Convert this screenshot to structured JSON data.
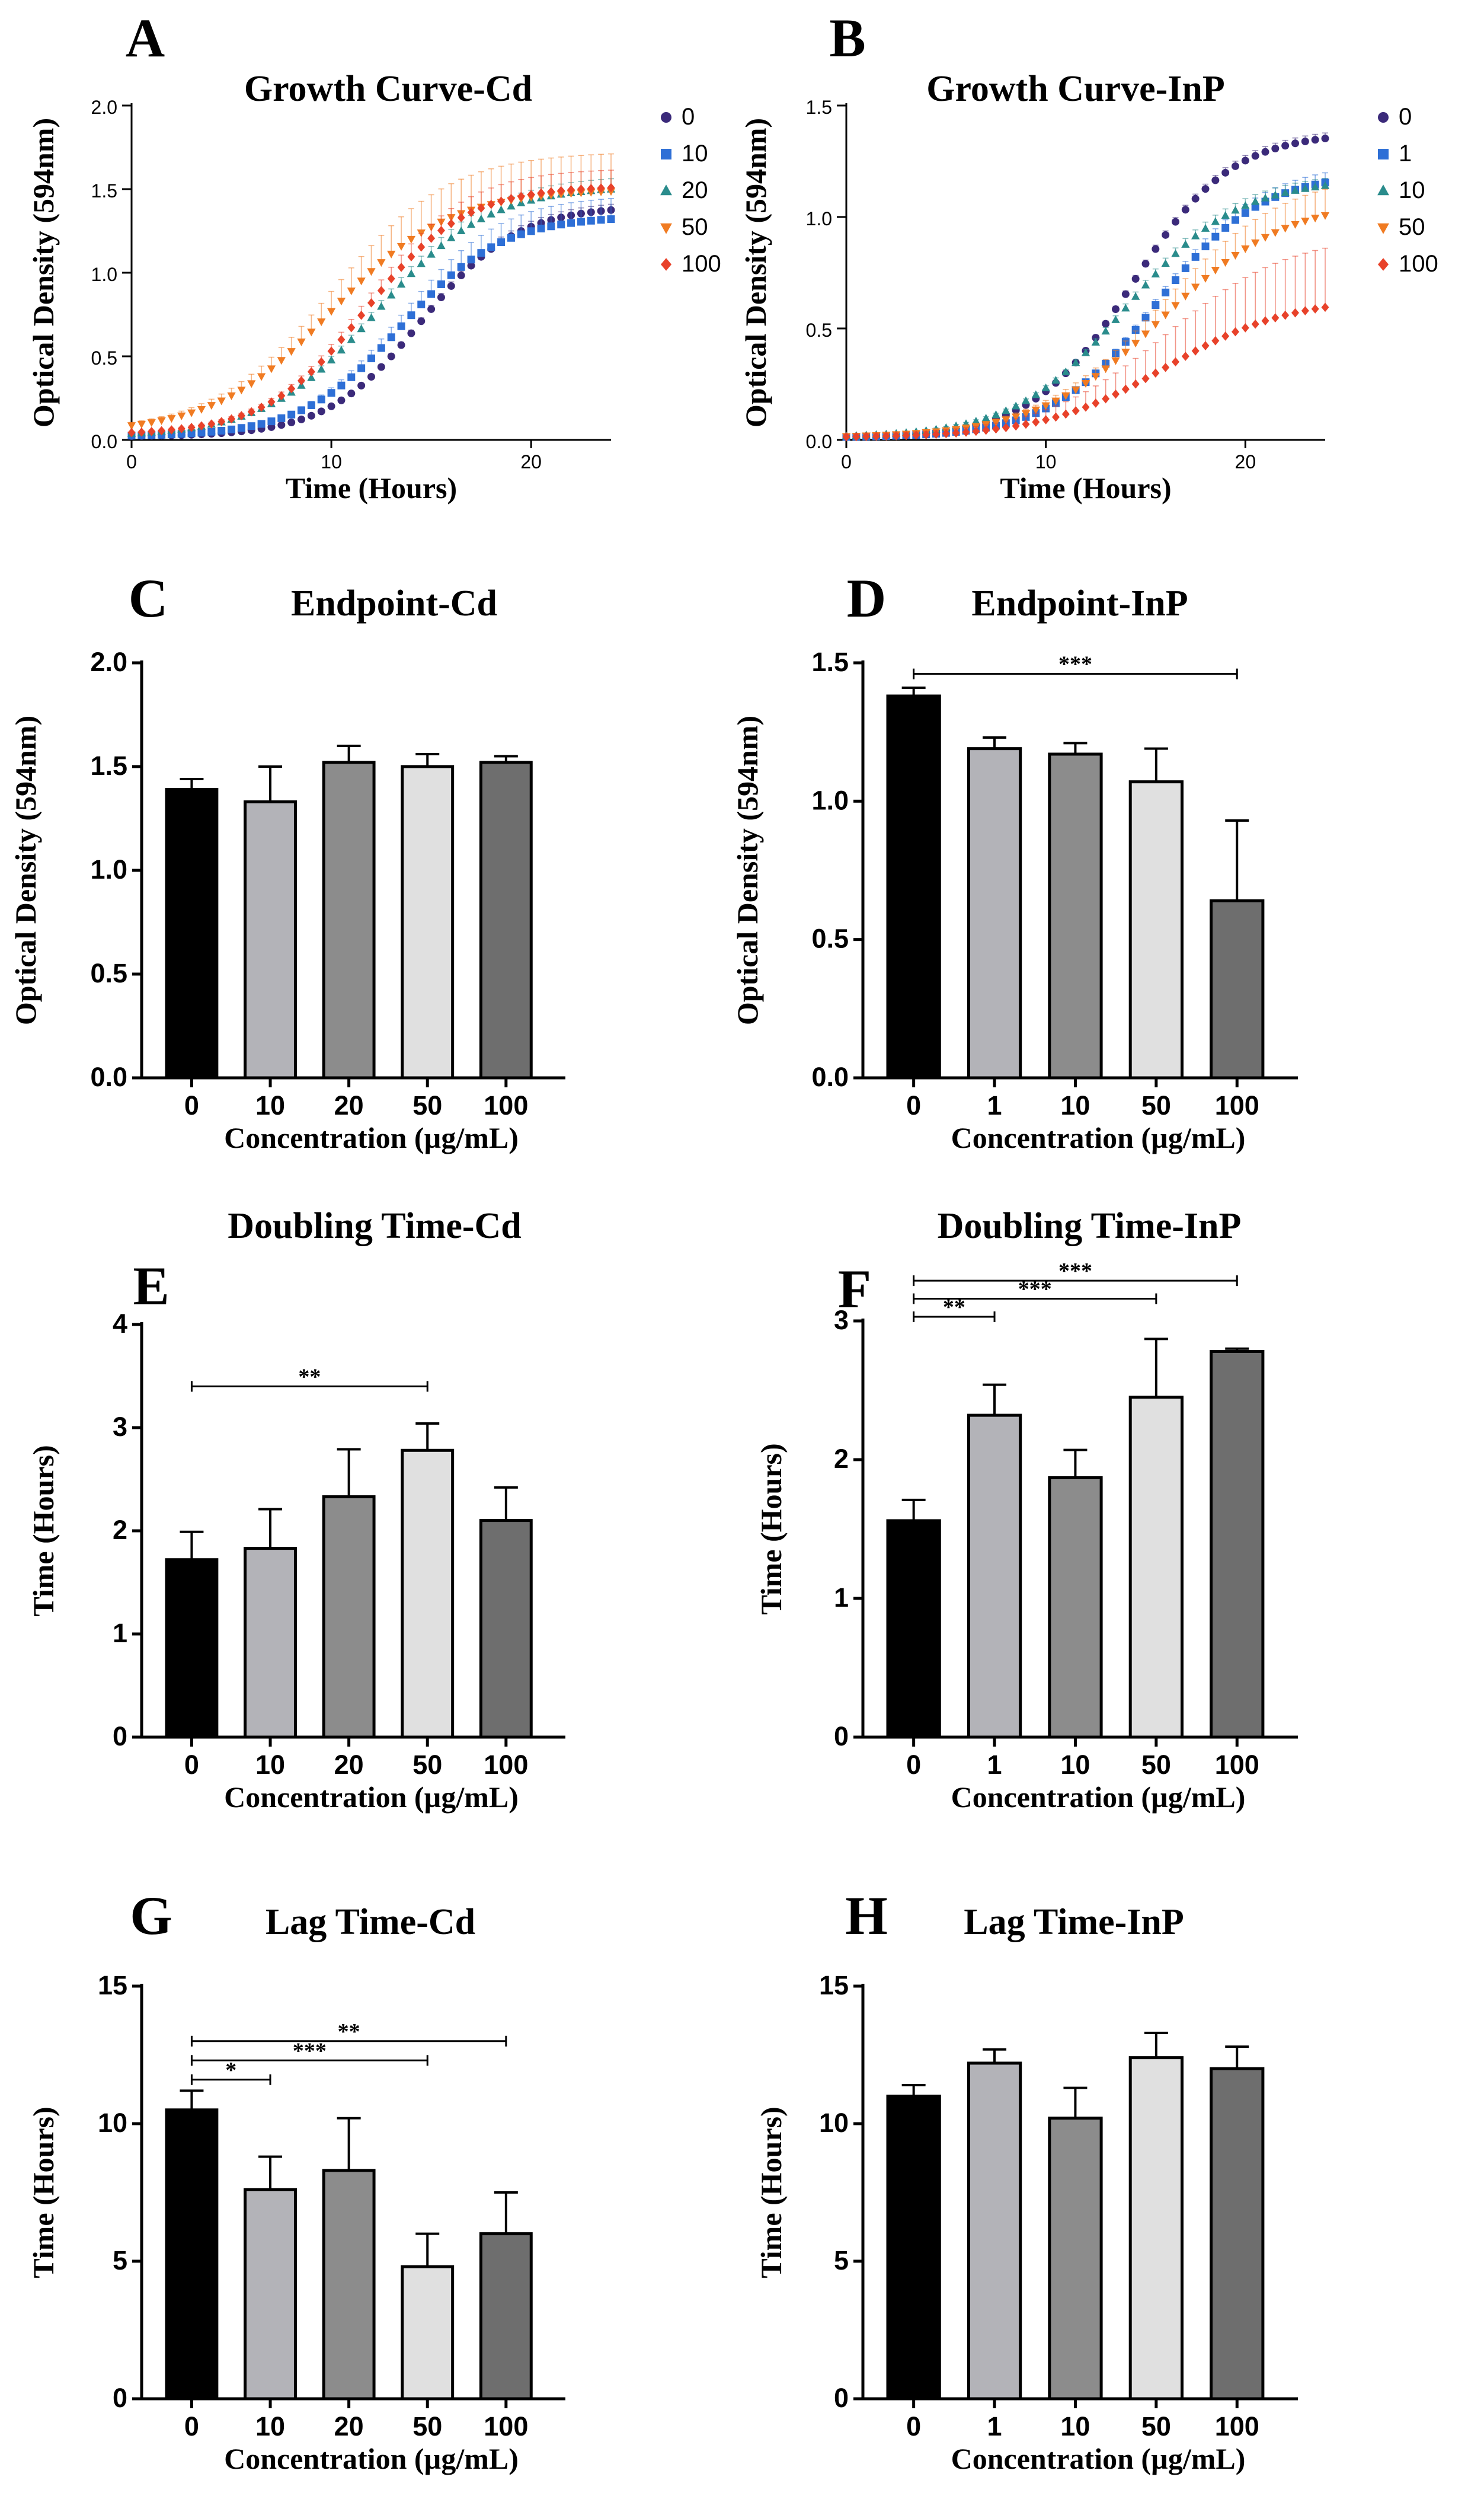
{
  "chart_data": [
    {
      "id": "A",
      "letter": "A",
      "type": "scatter",
      "title": "Growth Curve-Cd",
      "xlabel": "Time (Hours)",
      "ylabel": "Optical Density (594nm)",
      "xlim": [
        0,
        24
      ],
      "ylim": [
        0,
        2.0
      ],
      "xticks": [
        0,
        10,
        20
      ],
      "yticks": [
        "0.0",
        "0.5",
        "1.0",
        "1.5",
        "2.0"
      ],
      "series": [
        {
          "name": "0",
          "color": "#3b2a7a",
          "marker": "circle",
          "lag": 11.0,
          "max": 1.4,
          "k": 0.42,
          "base": 0.02,
          "err": 0.03
        },
        {
          "name": "10",
          "color": "#2e6fd6",
          "marker": "square",
          "lag": 10.0,
          "max": 1.34,
          "k": 0.4,
          "base": 0.02,
          "err": 0.12
        },
        {
          "name": "20",
          "color": "#2a8c8c",
          "marker": "triangle",
          "lag": 8.8,
          "max": 1.52,
          "k": 0.36,
          "base": 0.02,
          "err": 0.06
        },
        {
          "name": "50",
          "color": "#f07b22",
          "marker": "triangle-down",
          "lag": 6.5,
          "max": 1.5,
          "k": 0.34,
          "base": 0.04,
          "err": 0.22
        },
        {
          "name": "100",
          "color": "#e8422a",
          "marker": "diamond",
          "lag": 8.2,
          "max": 1.52,
          "k": 0.4,
          "base": 0.03,
          "err": 0.1
        }
      ]
    },
    {
      "id": "B",
      "letter": "B",
      "type": "scatter",
      "title": "Growth Curve-InP",
      "xlabel": "Time (Hours)",
      "ylabel": "Optical Density (594nm)",
      "xlim": [
        0,
        24
      ],
      "ylim": [
        0,
        1.5
      ],
      "xticks": [
        0,
        10,
        20
      ],
      "yticks": [
        "0.0",
        "0.5",
        "1.0",
        "1.5"
      ],
      "series": [
        {
          "name": "0",
          "color": "#3b2a7a",
          "marker": "circle",
          "lag": 10.8,
          "max": 1.38,
          "k": 0.4,
          "base": 0.01,
          "err": 0.02
        },
        {
          "name": "1",
          "color": "#2e6fd6",
          "marker": "square",
          "lag": 12.0,
          "max": 1.2,
          "k": 0.38,
          "base": 0.01,
          "err": 0.04
        },
        {
          "name": "10",
          "color": "#2a8c8c",
          "marker": "triangle",
          "lag": 10.5,
          "max": 1.17,
          "k": 0.36,
          "base": 0.01,
          "err": 0.03
        },
        {
          "name": "50",
          "color": "#f07b22",
          "marker": "triangle-down",
          "lag": 12.3,
          "max": 1.08,
          "k": 0.32,
          "base": 0.01,
          "err": 0.12
        },
        {
          "name": "100",
          "color": "#e8422a",
          "marker": "diamond",
          "lag": 12.5,
          "max": 0.64,
          "k": 0.32,
          "base": 0.01,
          "err": 0.28
        }
      ]
    },
    {
      "id": "C",
      "letter": "C",
      "type": "bar",
      "title": "Endpoint-Cd",
      "xlabel": "Concentration (µg/mL)",
      "ylabel": "Optical Density (594nm)",
      "ylim": [
        0,
        2.0
      ],
      "yticks": [
        "0.0",
        "0.5",
        "1.0",
        "1.5",
        "2.0"
      ],
      "categories": [
        "0",
        "10",
        "20",
        "50",
        "100"
      ],
      "values": [
        1.39,
        1.33,
        1.52,
        1.5,
        1.52
      ],
      "errors": [
        0.05,
        0.17,
        0.08,
        0.06,
        0.03
      ],
      "significance": []
    },
    {
      "id": "D",
      "letter": "D",
      "type": "bar",
      "title": "Endpoint-InP",
      "xlabel": "Concentration (µg/mL)",
      "ylabel": "Optical Density (594nm)",
      "ylim": [
        0,
        1.5
      ],
      "yticks": [
        "0.0",
        "0.5",
        "1.0",
        "1.5"
      ],
      "categories": [
        "0",
        "1",
        "10",
        "50",
        "100"
      ],
      "values": [
        1.38,
        1.19,
        1.17,
        1.07,
        0.64
      ],
      "errors": [
        0.03,
        0.04,
        0.04,
        0.12,
        0.29
      ],
      "significance": [
        {
          "from": 0,
          "to": 4,
          "label": "***",
          "level": 1.46
        }
      ]
    },
    {
      "id": "E",
      "letter": "E",
      "type": "bar",
      "title": "Doubling Time-Cd",
      "xlabel": "Concentration (µg/mL)",
      "ylabel": "Time (Hours)",
      "ylim": [
        0,
        4
      ],
      "yticks": [
        "0",
        "1",
        "2",
        "3",
        "4"
      ],
      "categories": [
        "0",
        "10",
        "20",
        "50",
        "100"
      ],
      "values": [
        1.72,
        1.83,
        2.33,
        2.78,
        2.1
      ],
      "errors": [
        0.27,
        0.38,
        0.46,
        0.26,
        0.32
      ],
      "significance": [
        {
          "from": 0,
          "to": 3,
          "label": "**",
          "level": 3.4
        }
      ]
    },
    {
      "id": "F",
      "letter": "F",
      "type": "bar",
      "title": "Doubling Time-InP",
      "xlabel": "Concentration (µg/mL)",
      "ylabel": "Time (Hours)",
      "ylim": [
        0,
        3
      ],
      "yticks": [
        "0",
        "1",
        "2",
        "3"
      ],
      "categories": [
        "0",
        "1",
        "10",
        "50",
        "100"
      ],
      "values": [
        1.56,
        2.32,
        1.87,
        2.45,
        2.78
      ],
      "errors": [
        0.15,
        0.22,
        0.2,
        0.42,
        0.02
      ],
      "significance": [
        {
          "from": 0,
          "to": 1,
          "label": "**",
          "level": 3.03
        },
        {
          "from": 0,
          "to": 3,
          "label": "***",
          "level": 3.16
        },
        {
          "from": 0,
          "to": 4,
          "label": "***",
          "level": 3.29
        }
      ]
    },
    {
      "id": "G",
      "letter": "G",
      "type": "bar",
      "title": "Lag Time-Cd",
      "xlabel": "Concentration (µg/mL)",
      "ylabel": "Time (Hours)",
      "ylim": [
        0,
        15
      ],
      "yticks": [
        "0",
        "5",
        "10",
        "15"
      ],
      "categories": [
        "0",
        "10",
        "20",
        "50",
        "100"
      ],
      "values": [
        10.5,
        7.6,
        8.3,
        4.8,
        6.0
      ],
      "errors": [
        0.7,
        1.2,
        1.9,
        1.2,
        1.5
      ],
      "significance": [
        {
          "from": 0,
          "to": 1,
          "label": "*",
          "level": 11.6
        },
        {
          "from": 0,
          "to": 3,
          "label": "***",
          "level": 12.3
        },
        {
          "from": 0,
          "to": 4,
          "label": "**",
          "level": 13.0
        }
      ]
    },
    {
      "id": "H",
      "letter": "H",
      "type": "bar",
      "title": "Lag Time-InP",
      "xlabel": "Concentration (µg/mL)",
      "ylabel": "Time (Hours)",
      "ylim": [
        0,
        15
      ],
      "yticks": [
        "0",
        "5",
        "10",
        "15"
      ],
      "categories": [
        "0",
        "1",
        "10",
        "50",
        "100"
      ],
      "values": [
        11.0,
        12.2,
        10.2,
        12.4,
        12.0
      ],
      "errors": [
        0.4,
        0.5,
        1.1,
        0.9,
        0.8
      ],
      "significance": []
    }
  ],
  "colors": {
    "bar_fills": [
      "#000000",
      "#b3b3b8",
      "#8c8c8c",
      "#e0e0e0",
      "#6e6e6e"
    ],
    "axis": "#000000"
  }
}
